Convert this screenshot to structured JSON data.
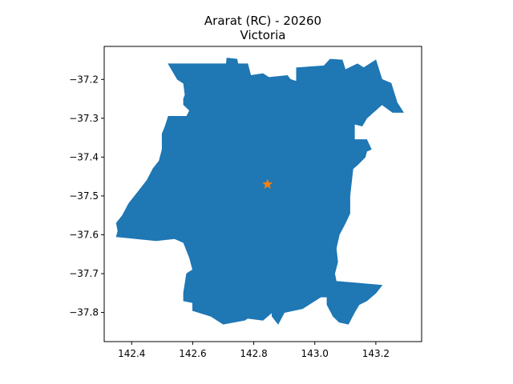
{
  "chart_data": {
    "type": "map",
    "title": "Ararat (RC) - 20260",
    "subtitle": "Victoria",
    "xlabel": "",
    "ylabel": "",
    "xlim": [
      142.31,
      143.35
    ],
    "ylim": [
      -37.875,
      -37.115
    ],
    "x_ticks": [
      {
        "value": 142.4,
        "label": "142.4"
      },
      {
        "value": 142.6,
        "label": "142.6"
      },
      {
        "value": 142.8,
        "label": "142.8"
      },
      {
        "value": 143.0,
        "label": "143.0"
      },
      {
        "value": 143.2,
        "label": "143.2"
      }
    ],
    "y_ticks": [
      {
        "value": -37.2,
        "label": "−37.2"
      },
      {
        "value": -37.3,
        "label": "−37.3"
      },
      {
        "value": -37.4,
        "label": "−37.4"
      },
      {
        "value": -37.5,
        "label": "−37.5"
      },
      {
        "value": -37.6,
        "label": "−37.6"
      },
      {
        "value": -37.7,
        "label": "−37.7"
      },
      {
        "value": -37.8,
        "label": "−37.8"
      }
    ],
    "grid": false,
    "region": {
      "fill_color": "#1f77b4",
      "boundary": [
        [
          142.52,
          -37.16
        ],
        [
          142.71,
          -37.16
        ],
        [
          142.712,
          -37.145
        ],
        [
          142.745,
          -37.148
        ],
        [
          142.748,
          -37.16
        ],
        [
          142.78,
          -37.16
        ],
        [
          142.79,
          -37.19
        ],
        [
          142.83,
          -37.185
        ],
        [
          142.85,
          -37.195
        ],
        [
          142.91,
          -37.19
        ],
        [
          142.92,
          -37.2
        ],
        [
          142.94,
          -37.205
        ],
        [
          142.94,
          -37.17
        ],
        [
          143.03,
          -37.165
        ],
        [
          143.05,
          -37.148
        ],
        [
          143.09,
          -37.15
        ],
        [
          143.1,
          -37.175
        ],
        [
          143.14,
          -37.16
        ],
        [
          143.16,
          -37.17
        ],
        [
          143.2,
          -37.15
        ],
        [
          143.22,
          -37.2
        ],
        [
          143.25,
          -37.21
        ],
        [
          143.27,
          -37.26
        ],
        [
          143.29,
          -37.285
        ],
        [
          143.255,
          -37.285
        ],
        [
          143.22,
          -37.265
        ],
        [
          143.17,
          -37.3
        ],
        [
          143.155,
          -37.32
        ],
        [
          143.13,
          -37.315
        ],
        [
          143.13,
          -37.355
        ],
        [
          143.17,
          -37.355
        ],
        [
          143.185,
          -37.38
        ],
        [
          143.17,
          -37.385
        ],
        [
          143.165,
          -37.4
        ],
        [
          143.14,
          -37.42
        ],
        [
          143.125,
          -37.43
        ],
        [
          143.115,
          -37.5
        ],
        [
          143.115,
          -37.545
        ],
        [
          143.1,
          -37.57
        ],
        [
          143.08,
          -37.6
        ],
        [
          143.07,
          -37.635
        ],
        [
          143.075,
          -37.67
        ],
        [
          143.065,
          -37.7
        ],
        [
          143.07,
          -37.72
        ],
        [
          143.22,
          -37.73
        ],
        [
          143.2,
          -37.75
        ],
        [
          143.17,
          -37.77
        ],
        [
          143.145,
          -37.78
        ],
        [
          143.13,
          -37.8
        ],
        [
          143.11,
          -37.83
        ],
        [
          143.08,
          -37.825
        ],
        [
          143.06,
          -37.81
        ],
        [
          143.04,
          -37.78
        ],
        [
          143.04,
          -37.76
        ],
        [
          143.02,
          -37.76
        ],
        [
          142.96,
          -37.79
        ],
        [
          142.9,
          -37.8
        ],
        [
          142.88,
          -37.83
        ],
        [
          142.86,
          -37.81
        ],
        [
          142.86,
          -37.8
        ],
        [
          142.83,
          -37.82
        ],
        [
          142.78,
          -37.815
        ],
        [
          142.77,
          -37.82
        ],
        [
          142.7,
          -37.83
        ],
        [
          142.66,
          -37.81
        ],
        [
          142.6,
          -37.795
        ],
        [
          142.6,
          -37.775
        ],
        [
          142.57,
          -37.77
        ],
        [
          142.57,
          -37.75
        ],
        [
          142.58,
          -37.7
        ],
        [
          142.6,
          -37.69
        ],
        [
          142.59,
          -37.66
        ],
        [
          142.57,
          -37.62
        ],
        [
          142.54,
          -37.61
        ],
        [
          142.48,
          -37.615
        ],
        [
          142.35,
          -37.605
        ],
        [
          142.355,
          -37.59
        ],
        [
          142.35,
          -37.57
        ],
        [
          142.37,
          -37.55
        ],
        [
          142.39,
          -37.52
        ],
        [
          142.42,
          -37.49
        ],
        [
          142.45,
          -37.46
        ],
        [
          142.47,
          -37.43
        ],
        [
          142.49,
          -37.41
        ],
        [
          142.5,
          -37.38
        ],
        [
          142.5,
          -37.34
        ],
        [
          142.51,
          -37.32
        ],
        [
          142.52,
          -37.295
        ],
        [
          142.58,
          -37.295
        ],
        [
          142.59,
          -37.28
        ],
        [
          142.57,
          -37.265
        ],
        [
          142.57,
          -37.25
        ],
        [
          142.575,
          -37.24
        ],
        [
          142.57,
          -37.21
        ],
        [
          142.55,
          -37.2
        ]
      ]
    },
    "marker": {
      "symbol": "star",
      "x": 142.845,
      "y": -37.47,
      "color": "#ff7f0e"
    }
  }
}
